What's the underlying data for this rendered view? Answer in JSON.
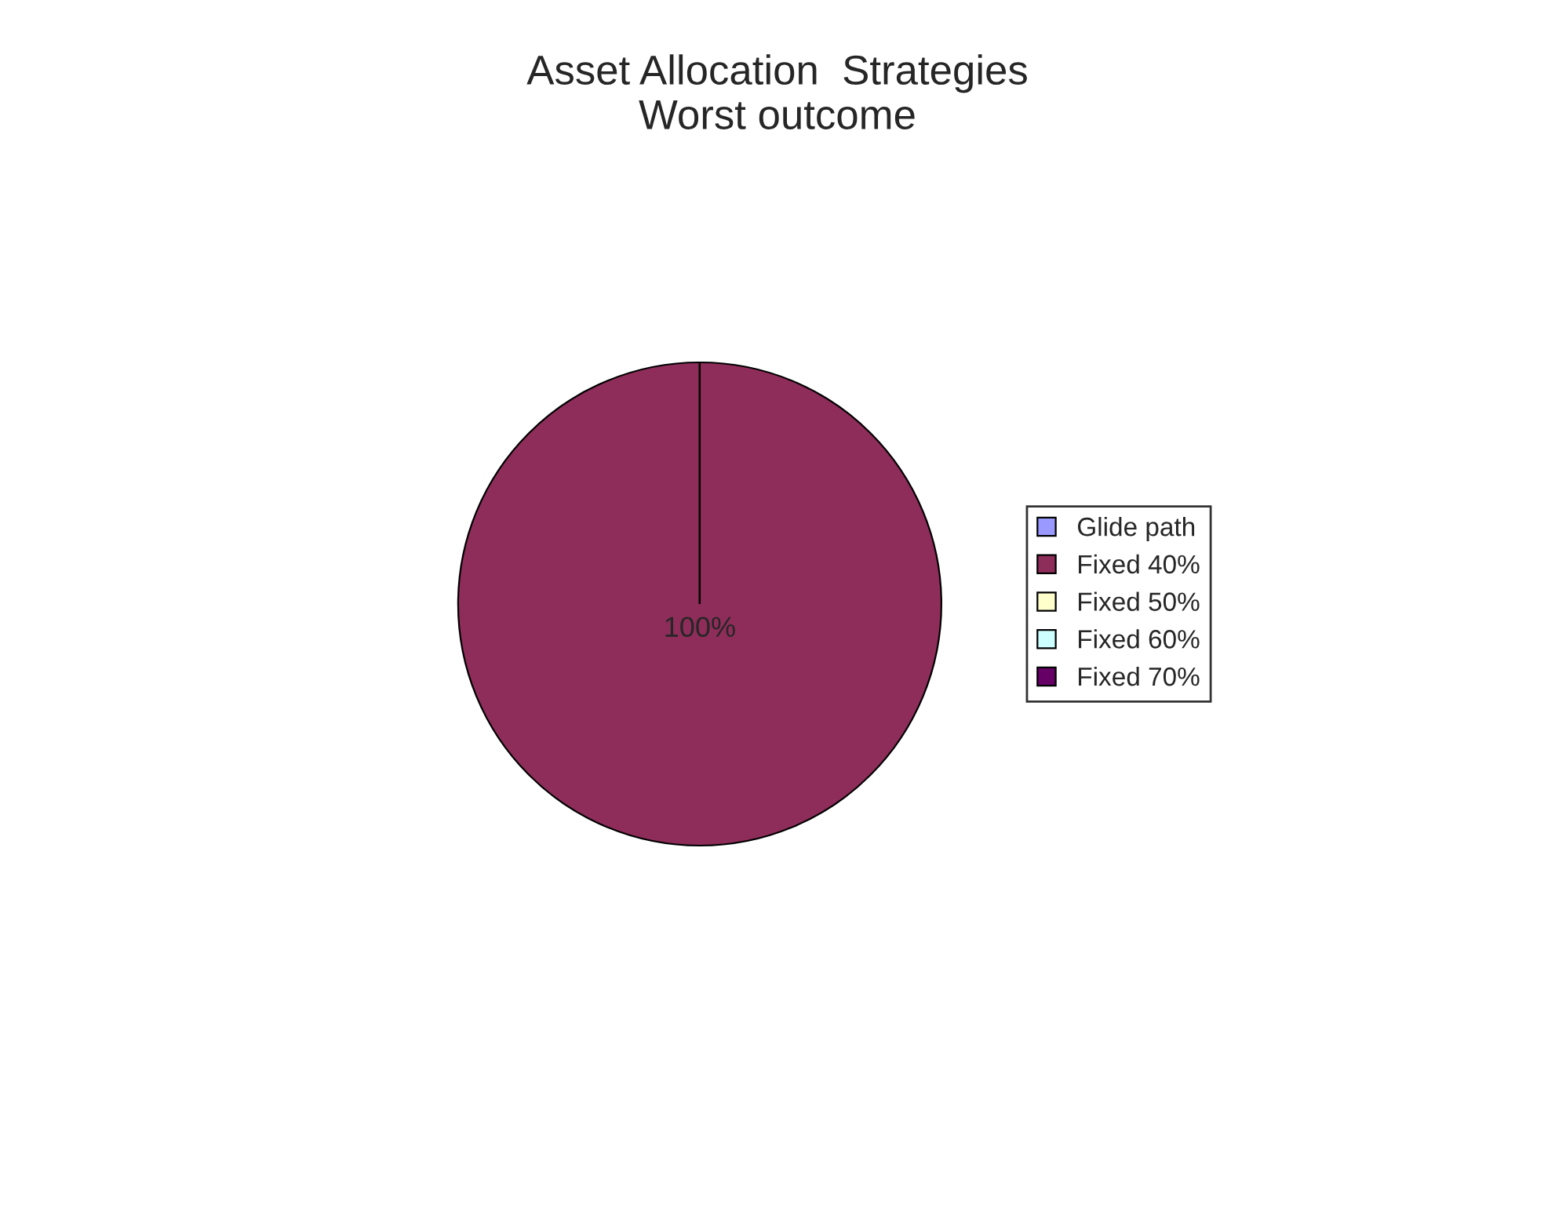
{
  "chart_data": {
    "type": "pie",
    "title": "Asset Allocation  Strategies\nWorst outcome",
    "categories": [
      "Glide path",
      "Fixed 40%",
      "Fixed 50%",
      "Fixed 60%",
      "Fixed 70%"
    ],
    "values": [
      0,
      100,
      0,
      0,
      0
    ],
    "colors": [
      "#9999ff",
      "#8e2d5a",
      "#ffffcc",
      "#ccffff",
      "#660066"
    ],
    "value_labels": [
      null,
      "100%",
      null,
      null,
      null
    ],
    "legend": "right"
  }
}
